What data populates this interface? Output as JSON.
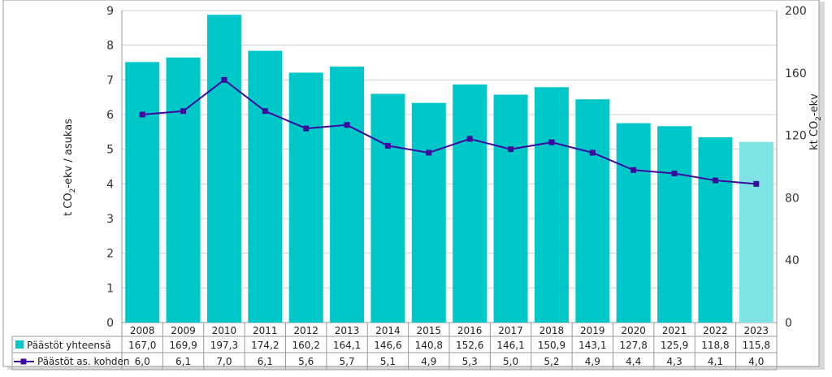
{
  "chart_data": {
    "type": "bar",
    "categories": [
      "2008",
      "2009",
      "2010",
      "2011",
      "2012",
      "2013",
      "2014",
      "2015",
      "2016",
      "2017",
      "2018",
      "2019",
      "2020",
      "2021",
      "2022",
      "2023"
    ],
    "series": [
      {
        "name": "Päästöt yhteensä",
        "type": "bar",
        "axis": "right",
        "values": [
          167.0,
          169.9,
          197.3,
          174.2,
          160.2,
          164.1,
          146.6,
          140.8,
          152.6,
          146.1,
          150.9,
          143.1,
          127.8,
          125.9,
          118.8,
          115.8
        ],
        "labels": [
          "167,0",
          "169,9",
          "197,3",
          "174,2",
          "160,2",
          "164,1",
          "146,6",
          "140,8",
          "152,6",
          "146,1",
          "150,9",
          "143,1",
          "127,8",
          "125,9",
          "118,8",
          "115,8"
        ],
        "color": "#00C8C8",
        "highlight_color": "#7FE3E6"
      },
      {
        "name": "Päästöt as. kohden",
        "type": "line",
        "axis": "left",
        "values": [
          6.0,
          6.1,
          7.0,
          6.1,
          5.6,
          5.7,
          5.1,
          4.9,
          5.3,
          5.0,
          5.2,
          4.9,
          4.4,
          4.3,
          4.1,
          4.0
        ],
        "labels": [
          "6,0",
          "6,1",
          "7,0",
          "6,1",
          "5,6",
          "5,7",
          "5,1",
          "4,9",
          "5,3",
          "5,0",
          "5,2",
          "4,9",
          "4,4",
          "4,3",
          "4,1",
          "4,0"
        ],
        "color": "#3D0AA0"
      }
    ],
    "y_left": {
      "label_main": "t CO",
      "label_sub": "2",
      "label_tail": "-ekv / asukas",
      "ylim": [
        0,
        9
      ],
      "ticks": [
        "0",
        "1",
        "2",
        "3",
        "4",
        "5",
        "6",
        "7",
        "8",
        "9"
      ]
    },
    "y_right": {
      "label_main": "kt CO",
      "label_sub": "2",
      "label_tail": "-ekv",
      "ylim": [
        0,
        200
      ],
      "ticks": [
        "0",
        "40",
        "80",
        "120",
        "160",
        "200"
      ]
    },
    "grid": true,
    "legend": "data-table-below"
  }
}
